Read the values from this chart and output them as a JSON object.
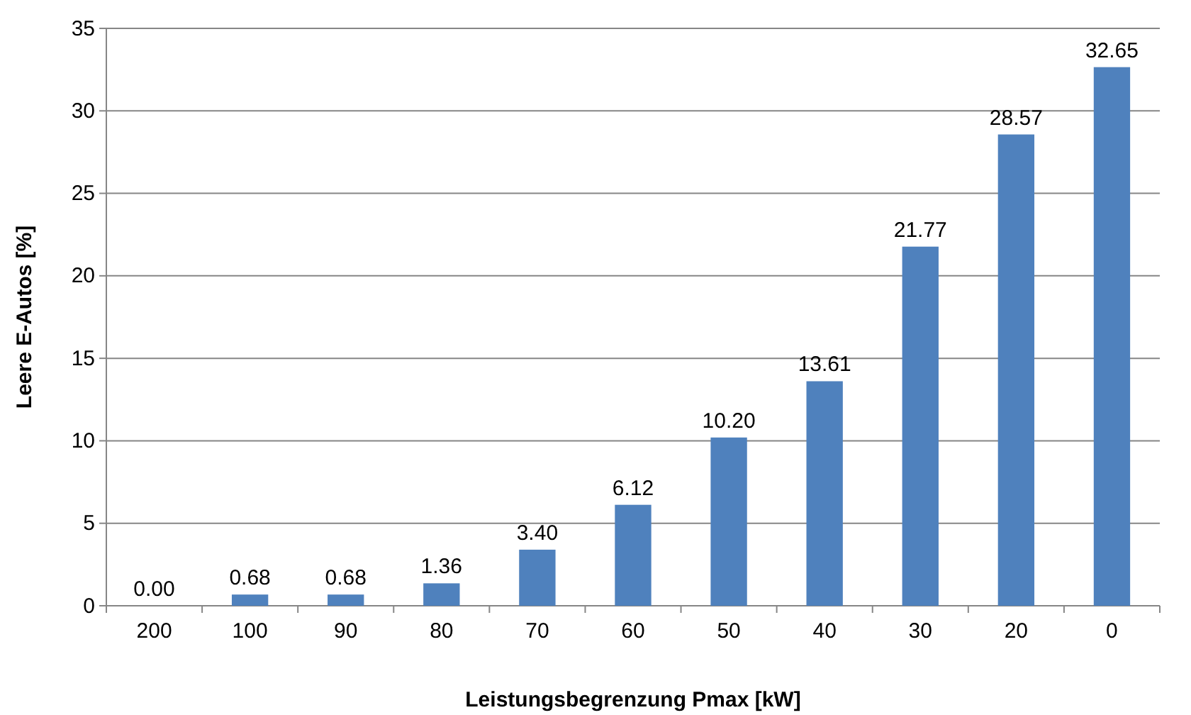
{
  "chart_data": {
    "type": "bar",
    "xlabel": "Leistungsbegrenzung Pmax [kW]",
    "ylabel": "Leere E-Autos [%]",
    "categories": [
      "200",
      "100",
      "90",
      "80",
      "70",
      "60",
      "50",
      "40",
      "30",
      "20",
      "0"
    ],
    "values": [
      0,
      0.68,
      0.68,
      1.36,
      3.4,
      6.12,
      10.2,
      13.61,
      21.77,
      28.57,
      32.65
    ],
    "value_labels": [
      "0.00",
      "0.68",
      "0.68",
      "1.36",
      "3.40",
      "6.12",
      "10.20",
      "13.61",
      "21.77",
      "28.57",
      "32.65"
    ],
    "color": "#4f81bd",
    "ylim": [
      0,
      35
    ],
    "yticks": [
      0,
      5,
      10,
      15,
      20,
      25,
      30,
      35
    ],
    "grid": "y"
  }
}
